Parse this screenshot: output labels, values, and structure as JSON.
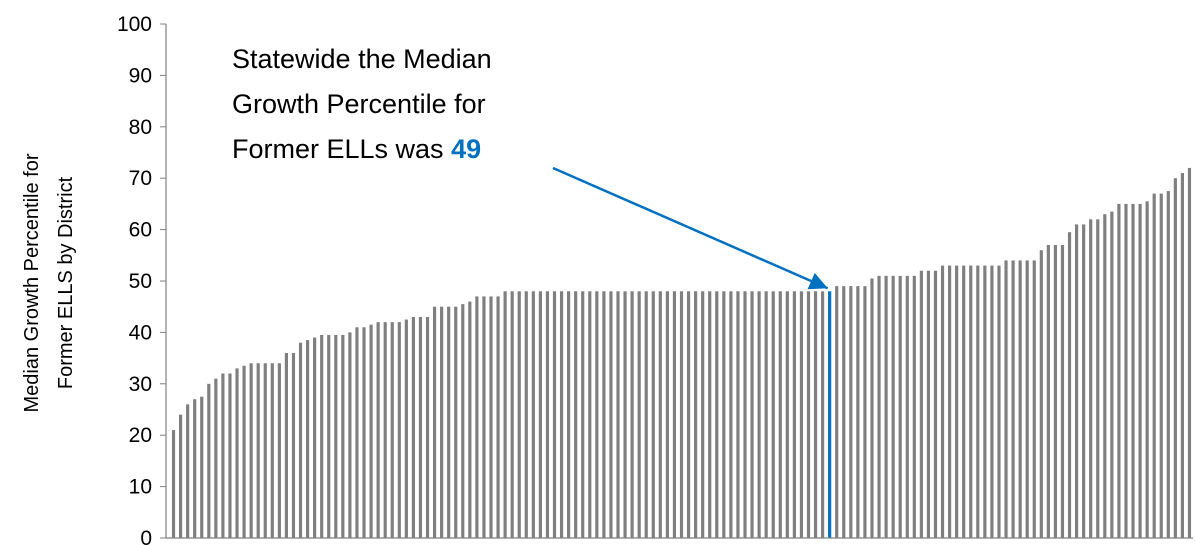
{
  "chart_data": {
    "type": "bar",
    "title": "",
    "xlabel": "",
    "ylabel_lines": [
      "Median Growth Percentile for",
      "Former ELLS by District"
    ],
    "ylim": [
      0,
      100
    ],
    "yticks": [
      0,
      10,
      20,
      30,
      40,
      50,
      60,
      70,
      80,
      90,
      100
    ],
    "grid": false,
    "colors": {
      "bar": "#7f7f7f",
      "highlight": "#0070c0",
      "axis": "#808080"
    },
    "highlight_index": 93,
    "annotation": {
      "lines": [
        "Statewide the Median",
        "Growth Percentile for",
        "Former ELLs was "
      ],
      "highlight_value": "49"
    },
    "values": [
      21,
      24,
      26,
      27,
      27.5,
      30,
      31,
      32,
      32,
      33,
      33.5,
      34,
      34,
      34,
      34,
      34,
      36,
      36,
      38,
      38.5,
      39,
      39.5,
      39.5,
      39.5,
      39.5,
      40,
      41,
      41,
      41.5,
      42,
      42,
      42,
      42,
      42.5,
      43,
      43,
      43,
      45,
      45,
      45,
      45,
      45.5,
      46,
      47,
      47,
      47,
      47,
      48,
      48,
      48,
      48,
      48,
      48,
      48,
      48,
      48,
      48,
      48,
      48,
      48,
      48,
      48,
      48,
      48,
      48,
      48,
      48,
      48,
      48,
      48,
      48,
      48,
      48,
      48,
      48,
      48,
      48,
      48,
      48,
      48,
      48,
      48,
      48,
      48,
      48,
      48,
      48,
      48,
      48,
      48,
      48,
      48,
      48,
      48,
      49,
      49,
      49,
      49,
      49,
      50.5,
      51,
      51,
      51,
      51,
      51,
      51,
      52,
      52,
      52,
      53,
      53,
      53,
      53,
      53,
      53,
      53,
      53,
      53,
      54,
      54,
      54,
      54,
      54,
      56,
      57,
      57,
      57,
      59.5,
      61,
      61,
      62,
      62,
      63,
      63.5,
      65,
      65,
      65,
      65,
      65.5,
      67,
      67,
      67.5,
      70,
      71,
      72
    ]
  }
}
